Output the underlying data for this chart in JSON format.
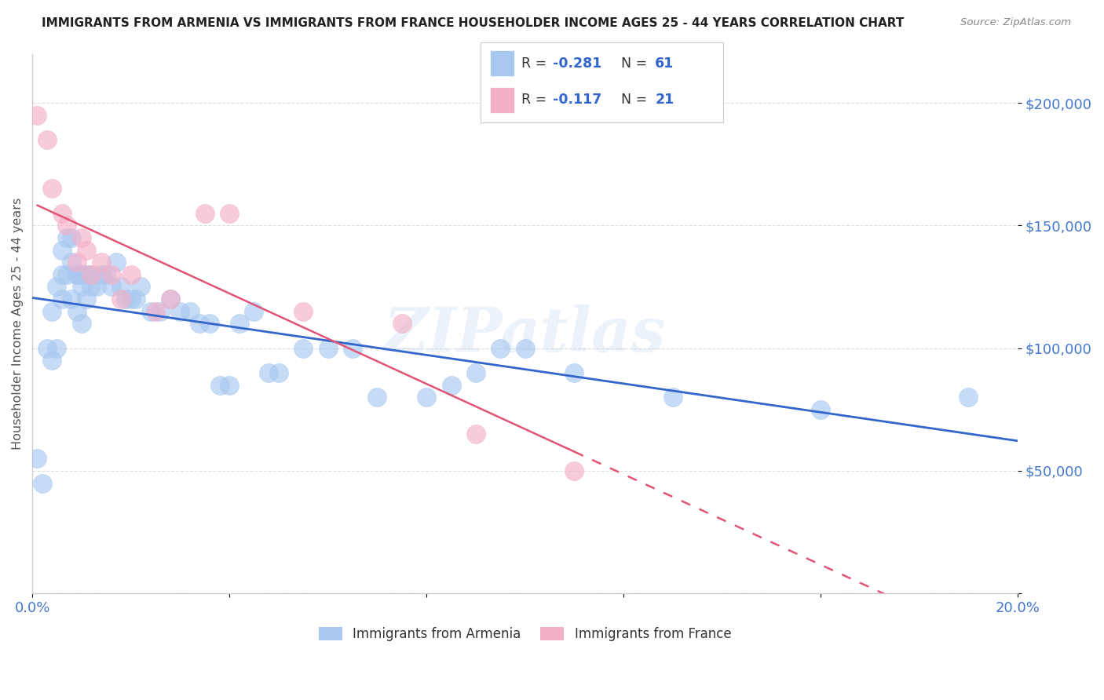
{
  "title": "IMMIGRANTS FROM ARMENIA VS IMMIGRANTS FROM FRANCE HOUSEHOLDER INCOME AGES 25 - 44 YEARS CORRELATION CHART",
  "source": "Source: ZipAtlas.com",
  "ylabel": "Householder Income Ages 25 - 44 years",
  "xlim": [
    0.0,
    0.2
  ],
  "ylim": [
    0,
    220000
  ],
  "yticks": [
    0,
    50000,
    100000,
    150000,
    200000
  ],
  "ytick_labels": [
    "",
    "$50,000",
    "$100,000",
    "$150,000",
    "$200,000"
  ],
  "xticks": [
    0.0,
    0.04,
    0.08,
    0.12,
    0.16,
    0.2
  ],
  "xtick_labels": [
    "0.0%",
    "",
    "",
    "",
    "",
    "20.0%"
  ],
  "armenia_color": "#a8c8f0",
  "france_color": "#f4b0c8",
  "armenia_line_color": "#3366cc",
  "france_line_color": "#e05575",
  "armenia_R": -0.281,
  "armenia_N": 61,
  "france_R": -0.117,
  "france_N": 21,
  "armenia_x": [
    0.001,
    0.002,
    0.003,
    0.004,
    0.004,
    0.005,
    0.005,
    0.006,
    0.006,
    0.006,
    0.007,
    0.007,
    0.008,
    0.008,
    0.008,
    0.009,
    0.009,
    0.009,
    0.01,
    0.01,
    0.01,
    0.011,
    0.011,
    0.012,
    0.012,
    0.013,
    0.014,
    0.015,
    0.016,
    0.017,
    0.018,
    0.019,
    0.02,
    0.021,
    0.022,
    0.024,
    0.026,
    0.028,
    0.03,
    0.032,
    0.034,
    0.036,
    0.038,
    0.04,
    0.042,
    0.045,
    0.048,
    0.05,
    0.055,
    0.06,
    0.065,
    0.07,
    0.08,
    0.085,
    0.09,
    0.095,
    0.1,
    0.11,
    0.13,
    0.16,
    0.19
  ],
  "armenia_y": [
    55000,
    45000,
    100000,
    95000,
    115000,
    125000,
    100000,
    120000,
    130000,
    140000,
    130000,
    145000,
    135000,
    120000,
    145000,
    130000,
    115000,
    130000,
    125000,
    110000,
    130000,
    130000,
    120000,
    130000,
    125000,
    125000,
    130000,
    130000,
    125000,
    135000,
    125000,
    120000,
    120000,
    120000,
    125000,
    115000,
    115000,
    120000,
    115000,
    115000,
    110000,
    110000,
    85000,
    85000,
    110000,
    115000,
    90000,
    90000,
    100000,
    100000,
    100000,
    80000,
    80000,
    85000,
    90000,
    100000,
    100000,
    90000,
    80000,
    75000,
    80000
  ],
  "france_x": [
    0.001,
    0.003,
    0.004,
    0.006,
    0.007,
    0.009,
    0.01,
    0.011,
    0.012,
    0.014,
    0.016,
    0.018,
    0.02,
    0.025,
    0.028,
    0.035,
    0.04,
    0.055,
    0.075,
    0.09,
    0.11
  ],
  "france_y": [
    195000,
    185000,
    165000,
    155000,
    150000,
    135000,
    145000,
    140000,
    130000,
    135000,
    130000,
    120000,
    130000,
    115000,
    120000,
    155000,
    155000,
    115000,
    110000,
    65000,
    50000
  ],
  "watermark": "ZIPatlas",
  "background_color": "#ffffff",
  "grid_color": "#dddddd",
  "title_color": "#222222",
  "axis_label_color": "#555555",
  "tick_color": "#4477cc",
  "legend_bg": "#ffffff",
  "legend_edge": "#cccccc"
}
